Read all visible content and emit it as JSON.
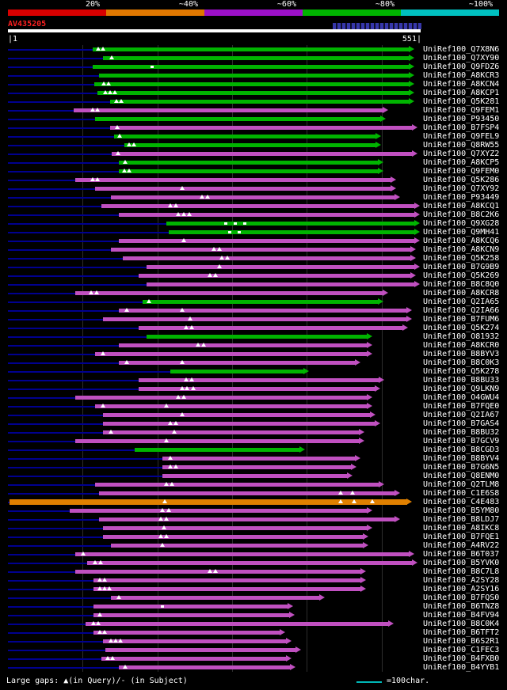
{
  "scale": {
    "labels": [
      "20%",
      "~40%",
      "~60%",
      "~80%",
      "~100%"
    ],
    "colors": [
      "#d80000",
      "#e07800",
      "#9c10c8",
      "#00b400",
      "#00c0c0"
    ]
  },
  "query": {
    "name": "AV435205",
    "left_tick": "|1",
    "right_tick": "551|"
  },
  "legend": {
    "gaps": "Large gaps: ▲(in Query)/- (in Subject)",
    "scale_note": "=100char."
  },
  "colors": {
    "green": "#00b400",
    "magenta": "#c050c0",
    "orange": "#e08000",
    "lead": "#000090",
    "grid": "#2d2d2d",
    "teal": "#00b8b8",
    "query_bar": "#ffffff",
    "accession_red": "#ff2020",
    "link_blue": "#4040c8"
  },
  "chart_data": {
    "type": "bar",
    "title": "AV435205",
    "query_length": 551,
    "x_axis": {
      "start": 1,
      "end": 551,
      "gridline_interval": 100
    },
    "color_meaning": {
      "red": "20%",
      "orange": "~40%",
      "magenta": "~60%",
      "green": "~80%",
      "cyan": "~100%"
    },
    "hits": [
      {
        "label": "UniRef100_Q7X8N6",
        "color": "green",
        "start": 113,
        "end": 544,
        "gaps_query": [
          121,
          127
        ]
      },
      {
        "label": "UniRef100_Q7XY90",
        "color": "green",
        "start": 127,
        "end": 544,
        "gaps_query": [
          139
        ]
      },
      {
        "label": "UniRef100_Q9FDZ6",
        "color": "green",
        "start": 113,
        "end": 544,
        "gaps_subject": [
          193
        ]
      },
      {
        "label": "UniRef100_A8KCR3",
        "color": "green",
        "start": 122,
        "end": 544
      },
      {
        "label": "UniRef100_A8KCN4",
        "color": "green",
        "start": 115,
        "end": 544,
        "gaps_query": [
          128,
          135
        ]
      },
      {
        "label": "UniRef100_A8KCP1",
        "color": "green",
        "start": 120,
        "end": 544,
        "gaps_query": [
          130,
          137,
          143
        ]
      },
      {
        "label": "UniRef100_Q5K281",
        "color": "green",
        "start": 137,
        "end": 544,
        "gaps_query": [
          145,
          152
        ]
      },
      {
        "label": "UniRef100_Q9FEM1",
        "color": "magenta",
        "start": 88,
        "end": 509,
        "gaps_query": [
          113,
          120
        ]
      },
      {
        "label": "UniRef100_P93450",
        "color": "green",
        "start": 117,
        "end": 505
      },
      {
        "label": "UniRef100_B7FSP4",
        "color": "magenta",
        "start": 137,
        "end": 548,
        "gaps_query": [
          146
        ]
      },
      {
        "label": "UniRef100_Q9FEL9",
        "color": "green",
        "start": 142,
        "end": 499,
        "gaps_query": [
          149
        ]
      },
      {
        "label": "UniRef100_Q8RW55",
        "color": "green",
        "start": 156,
        "end": 499,
        "gaps_query": [
          162,
          168
        ]
      },
      {
        "label": "UniRef100_Q7XYZ2",
        "color": "magenta",
        "start": 139,
        "end": 548,
        "gaps_query": [
          147
        ]
      },
      {
        "label": "UniRef100_A8KCP5",
        "color": "green",
        "start": 148,
        "end": 502,
        "gaps_query": [
          157
        ]
      },
      {
        "label": "UniRef100_Q9FEM0",
        "color": "green",
        "start": 148,
        "end": 502,
        "gaps_query": [
          156,
          162
        ]
      },
      {
        "label": "UniRef100_Q5K286",
        "color": "magenta",
        "start": 90,
        "end": 519,
        "gaps_query": [
          113,
          120
        ]
      },
      {
        "label": "UniRef100_Q7XY92",
        "color": "magenta",
        "start": 117,
        "end": 519,
        "gaps_query": [
          233
        ]
      },
      {
        "label": "UniRef100_P93449",
        "color": "magenta",
        "start": 138,
        "end": 525,
        "gaps_query": [
          260,
          267
        ]
      },
      {
        "label": "UniRef100_A8KCQ1",
        "color": "magenta",
        "start": 125,
        "end": 551,
        "gaps_query": [
          217,
          225
        ]
      },
      {
        "label": "UniRef100_B8C2K6",
        "color": "magenta",
        "start": 148,
        "end": 551,
        "gaps_query": [
          228,
          235,
          243
        ]
      },
      {
        "label": "UniRef100_Q9XG28",
        "color": "green",
        "start": 212,
        "end": 551,
        "gaps_subject": [
          291,
          304,
          317
        ]
      },
      {
        "label": "UniRef100_Q9MH41",
        "color": "green",
        "start": 215,
        "end": 551,
        "gaps_subject": [
          297,
          309
        ]
      },
      {
        "label": "UniRef100_A8KCQ6",
        "color": "magenta",
        "start": 148,
        "end": 551,
        "gaps_query": [
          235
        ]
      },
      {
        "label": "UniRef100_A8KCN9",
        "color": "magenta",
        "start": 138,
        "end": 546,
        "gaps_query": [
          276,
          283
        ]
      },
      {
        "label": "UniRef100_Q5K258",
        "color": "magenta",
        "start": 154,
        "end": 546,
        "gaps_query": [
          286,
          294
        ]
      },
      {
        "label": "UniRef100_B7G9B9",
        "color": "magenta",
        "start": 185,
        "end": 551,
        "gaps_query": [
          283
        ]
      },
      {
        "label": "UniRef100_Q5K269",
        "color": "magenta",
        "start": 175,
        "end": 546,
        "gaps_query": [
          270,
          278
        ]
      },
      {
        "label": "UniRef100_B8C8Q0",
        "color": "magenta",
        "start": 185,
        "end": 551
      },
      {
        "label": "UniRef100_A8KCR8",
        "color": "magenta",
        "start": 90,
        "end": 509,
        "gaps_query": [
          111,
          119
        ]
      },
      {
        "label": "UniRef100_Q2IA65",
        "color": "green",
        "start": 180,
        "end": 502,
        "gaps_query": [
          189
        ]
      },
      {
        "label": "UniRef100_Q2IA66",
        "color": "magenta",
        "start": 148,
        "end": 540,
        "gaps_query": [
          159,
          233
        ]
      },
      {
        "label": "UniRef100_B7FUM6",
        "color": "magenta",
        "start": 127,
        "end": 540,
        "gaps_query": [
          244
        ]
      },
      {
        "label": "UniRef100_Q5K274",
        "color": "magenta",
        "start": 175,
        "end": 535,
        "gaps_query": [
          238,
          246
        ]
      },
      {
        "label": "UniRef100_O81932",
        "color": "green",
        "start": 185,
        "end": 487
      },
      {
        "label": "UniRef100_A8KCR0",
        "color": "magenta",
        "start": 148,
        "end": 487,
        "gaps_query": [
          254,
          262
        ]
      },
      {
        "label": "UniRef100_B8BYV3",
        "color": "magenta",
        "start": 117,
        "end": 487,
        "gaps_query": [
          127
        ]
      },
      {
        "label": "UniRef100_B8C0K3",
        "color": "magenta",
        "start": 148,
        "end": 471,
        "gaps_query": [
          159,
          233
        ]
      },
      {
        "label": "UniRef100_Q5K278",
        "color": "green",
        "start": 217,
        "end": 403
      },
      {
        "label": "UniRef100_B8BU33",
        "color": "magenta",
        "start": 175,
        "end": 503,
        "gaps_query": [
          238,
          246
        ]
      },
      {
        "label": "UniRef100_Q9LKN9",
        "color": "magenta",
        "start": 175,
        "end": 498,
        "gaps_query": [
          233,
          240,
          248
        ]
      },
      {
        "label": "UniRef100_O4GWU4",
        "color": "magenta",
        "start": 90,
        "end": 487,
        "gaps_query": [
          228,
          235
        ]
      },
      {
        "label": "UniRef100_B7FQE0",
        "color": "magenta",
        "start": 117,
        "end": 487,
        "gaps_query": [
          127,
          212
        ]
      },
      {
        "label": "UniRef100_Q2IA67",
        "color": "magenta",
        "start": 127,
        "end": 492,
        "gaps_query": [
          233
        ]
      },
      {
        "label": "UniRef100_B7GAS4",
        "color": "magenta",
        "start": 127,
        "end": 498,
        "gaps_query": [
          217,
          225
        ]
      },
      {
        "label": "UniRef100_B8BU32",
        "color": "magenta",
        "start": 127,
        "end": 477,
        "gaps_query": [
          138,
          222
        ]
      },
      {
        "label": "UniRef100_B7GCV9",
        "color": "magenta",
        "start": 90,
        "end": 477,
        "gaps_query": [
          212
        ]
      },
      {
        "label": "UniRef100_B8CGD3",
        "color": "green",
        "start": 170,
        "end": 397
      },
      {
        "label": "UniRef100_B8BYV4",
        "color": "magenta",
        "start": 207,
        "end": 472,
        "gaps_query": [
          217
        ]
      },
      {
        "label": "UniRef100_B7G6N5",
        "color": "magenta",
        "start": 207,
        "end": 466,
        "gaps_query": [
          217,
          225
        ]
      },
      {
        "label": "UniRef100_Q8ENM0",
        "color": "magenta",
        "start": 207,
        "end": 461
      },
      {
        "label": "UniRef100_Q2TLM8",
        "color": "magenta",
        "start": 117,
        "end": 503,
        "gaps_query": [
          212,
          219
        ]
      },
      {
        "label": "UniRef100_C1E6S8",
        "color": "magenta",
        "start": 122,
        "end": 525,
        "gaps_query": [
          445,
          461
        ]
      },
      {
        "label": "UniRef100_C4E483",
        "color": "orange",
        "start": 2,
        "end": 540,
        "gaps_query": [
          210,
          445,
          463,
          487
        ]
      },
      {
        "label": "UniRef100_B5YM80",
        "color": "magenta",
        "start": 83,
        "end": 487,
        "gaps_query": [
          207,
          215
        ]
      },
      {
        "label": "UniRef100_B8LDJ7",
        "color": "magenta",
        "start": 122,
        "end": 525,
        "gaps_query": [
          205,
          212
        ]
      },
      {
        "label": "UniRef100_A8IKC8",
        "color": "magenta",
        "start": 127,
        "end": 487,
        "gaps_query": [
          209
        ]
      },
      {
        "label": "UniRef100_B7FQE1",
        "color": "magenta",
        "start": 127,
        "end": 482,
        "gaps_query": [
          205,
          212
        ]
      },
      {
        "label": "UniRef100_A4RV22",
        "color": "magenta",
        "start": 138,
        "end": 482,
        "gaps_query": [
          207
        ]
      },
      {
        "label": "UniRef100_B6T037",
        "color": "magenta",
        "start": 90,
        "end": 544,
        "gaps_query": [
          101
        ]
      },
      {
        "label": "UniRef100_B5YVK0",
        "color": "magenta",
        "start": 106,
        "end": 548,
        "gaps_query": [
          117,
          124
        ]
      },
      {
        "label": "UniRef100_B8C7L8",
        "color": "magenta",
        "start": 90,
        "end": 479,
        "gaps_query": [
          270,
          278
        ]
      },
      {
        "label": "UniRef100_A2SY28",
        "color": "magenta",
        "start": 114,
        "end": 479,
        "gaps_query": [
          123,
          129
        ]
      },
      {
        "label": "UniRef100_A2SY16",
        "color": "magenta",
        "start": 114,
        "end": 479,
        "gaps_query": [
          123,
          129,
          136
        ]
      },
      {
        "label": "UniRef100_B7FQS0",
        "color": "magenta",
        "start": 138,
        "end": 424,
        "gaps_query": [
          148
        ]
      },
      {
        "label": "UniRef100_B6TNZ8",
        "color": "magenta",
        "start": 114,
        "end": 381,
        "gaps_subject": [
          207
        ]
      },
      {
        "label": "UniRef100_B4FV94",
        "color": "magenta",
        "start": 114,
        "end": 384,
        "gaps_query": [
          123
        ]
      },
      {
        "label": "UniRef100_B8C0K4",
        "color": "magenta",
        "start": 104,
        "end": 516,
        "gaps_query": [
          114,
          121
        ]
      },
      {
        "label": "UniRef100_B6TFT2",
        "color": "magenta",
        "start": 114,
        "end": 371,
        "gaps_query": [
          123,
          129
        ]
      },
      {
        "label": "UniRef100_B6S2R1",
        "color": "magenta",
        "start": 127,
        "end": 379,
        "gaps_query": [
          138,
          144,
          150
        ]
      },
      {
        "label": "UniRef100_C1FEC3",
        "color": "magenta",
        "start": 130,
        "end": 392
      },
      {
        "label": "UniRef100_B4FXB0",
        "color": "magenta",
        "start": 125,
        "end": 379,
        "gaps_query": [
          133,
          140
        ]
      },
      {
        "label": "UniRef100_B4YYB1",
        "color": "magenta",
        "start": 148,
        "end": 385,
        "gaps_query": [
          157
        ]
      }
    ]
  }
}
